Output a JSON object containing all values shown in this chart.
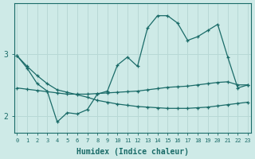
{
  "xlabel": "Humidex (Indice chaleur)",
  "bg_color": "#ceeae7",
  "line_color": "#1a6b68",
  "grid_color": "#b8d8d5",
  "line1_y": [
    2.97,
    2.77,
    2.52,
    2.4,
    1.9,
    2.05,
    2.03,
    2.1,
    2.35,
    2.4,
    2.82,
    2.95,
    2.8,
    3.42,
    3.62,
    3.62,
    3.5,
    3.22,
    3.28,
    3.38,
    3.48,
    2.95,
    2.45,
    2.5
  ],
  "line2_y": [
    2.45,
    2.43,
    2.41,
    2.39,
    2.37,
    2.35,
    2.35,
    2.35,
    2.36,
    2.37,
    2.38,
    2.39,
    2.4,
    2.42,
    2.44,
    2.46,
    2.47,
    2.48,
    2.5,
    2.52,
    2.54,
    2.55,
    2.5,
    2.5
  ],
  "line3_y": [
    2.97,
    2.8,
    2.65,
    2.52,
    2.42,
    2.38,
    2.34,
    2.3,
    2.25,
    2.22,
    2.19,
    2.17,
    2.15,
    2.14,
    2.13,
    2.12,
    2.12,
    2.12,
    2.13,
    2.14,
    2.16,
    2.18,
    2.2,
    2.22
  ],
  "xlim": [
    -0.3,
    23.3
  ],
  "ylim": [
    1.73,
    3.82
  ],
  "yticks": [
    2,
    3
  ],
  "xticks": [
    0,
    1,
    2,
    3,
    4,
    5,
    6,
    7,
    8,
    9,
    10,
    11,
    12,
    13,
    14,
    15,
    16,
    17,
    18,
    19,
    20,
    21,
    22,
    23
  ]
}
